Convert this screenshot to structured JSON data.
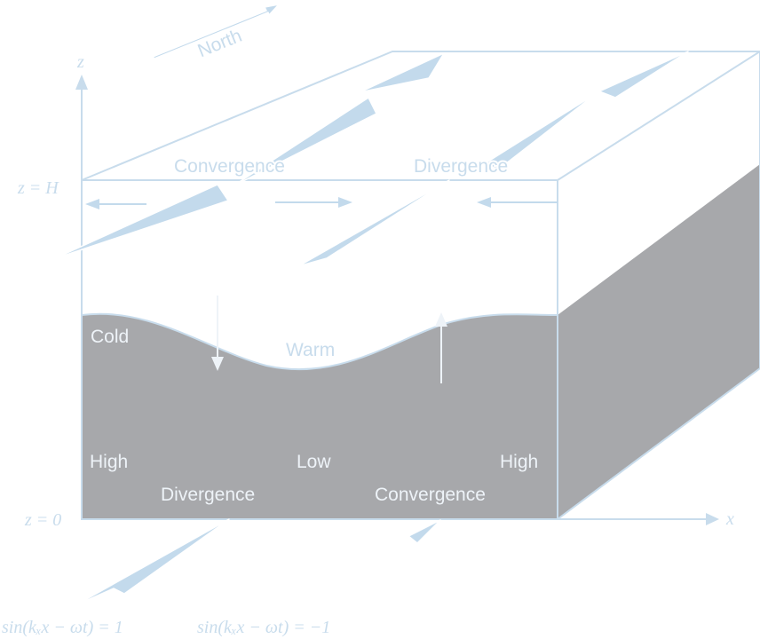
{
  "colors": {
    "line": "#c8dcec",
    "arrow": "#c3daec",
    "halo": "#ffffff",
    "fill_dark": "#a7a8ab",
    "text_on_white": "#c8dcec",
    "text_on_dark": "#eef3f8"
  },
  "labels": {
    "north": "North",
    "z_axis": "z",
    "x_axis": "x",
    "z_top": "z = H",
    "z_bottom": "z = 0",
    "top_convergence": "Convergence",
    "top_divergence": "Divergence",
    "cold": "Cold",
    "warm": "Warm",
    "high_left": "High",
    "low": "Low",
    "high_right": "High",
    "bottom_divergence": "Divergence",
    "bottom_convergence": "Convergence",
    "phase_plus": "sin(kₓx − ωt) = 1",
    "phase_minus": "sin(kₓx − ωt) = −1"
  }
}
